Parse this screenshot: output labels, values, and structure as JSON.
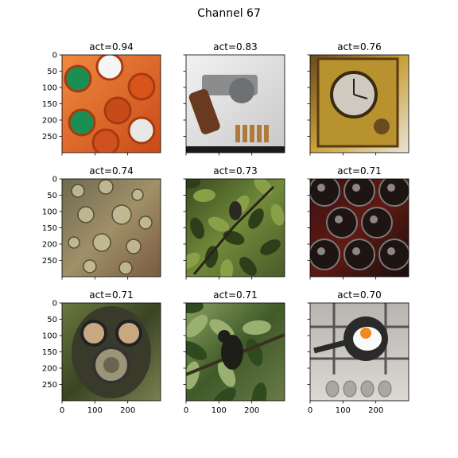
{
  "figure": {
    "title": "Channel 67"
  },
  "panels": [
    {
      "title": "act=0.94",
      "subject": "orange-and-green-bottle-caps"
    },
    {
      "title": "act=0.83",
      "subject": "revolver-with-bullets"
    },
    {
      "title": "act=0.76",
      "subject": "brass-clock-mechanism"
    },
    {
      "title": "act=0.74",
      "subject": "water-droplets"
    },
    {
      "title": "act=0.73",
      "subject": "bird-in-tree-foliage"
    },
    {
      "title": "act=0.71",
      "subject": "wine-bottle-bottoms"
    },
    {
      "title": "act=0.71",
      "subject": "gas-mask-soldier"
    },
    {
      "title": "act=0.71",
      "subject": "monkey-in-jungle-tree"
    },
    {
      "title": "act=0.70",
      "subject": "fried-egg-on-stove"
    }
  ],
  "axes": {
    "y_ticks": [
      "0",
      "50",
      "100",
      "150",
      "200",
      "250"
    ],
    "x_ticks": [
      "0",
      "100",
      "200"
    ]
  },
  "colors": {
    "spine": "#000000",
    "caps_orange": "#e8622a",
    "caps_green": "#1b8f52",
    "metal_gray": "#8a8c8e",
    "brass": "#b8922e",
    "droplet_bg": "#8a8060",
    "foliage": "#4f6a2c",
    "wine_dark": "#2a1412",
    "mask_green": "#4a5a30",
    "jungle": "#3e5a2a",
    "stove_gray": "#c8c4c0",
    "egg_yolk": "#f08a20"
  }
}
